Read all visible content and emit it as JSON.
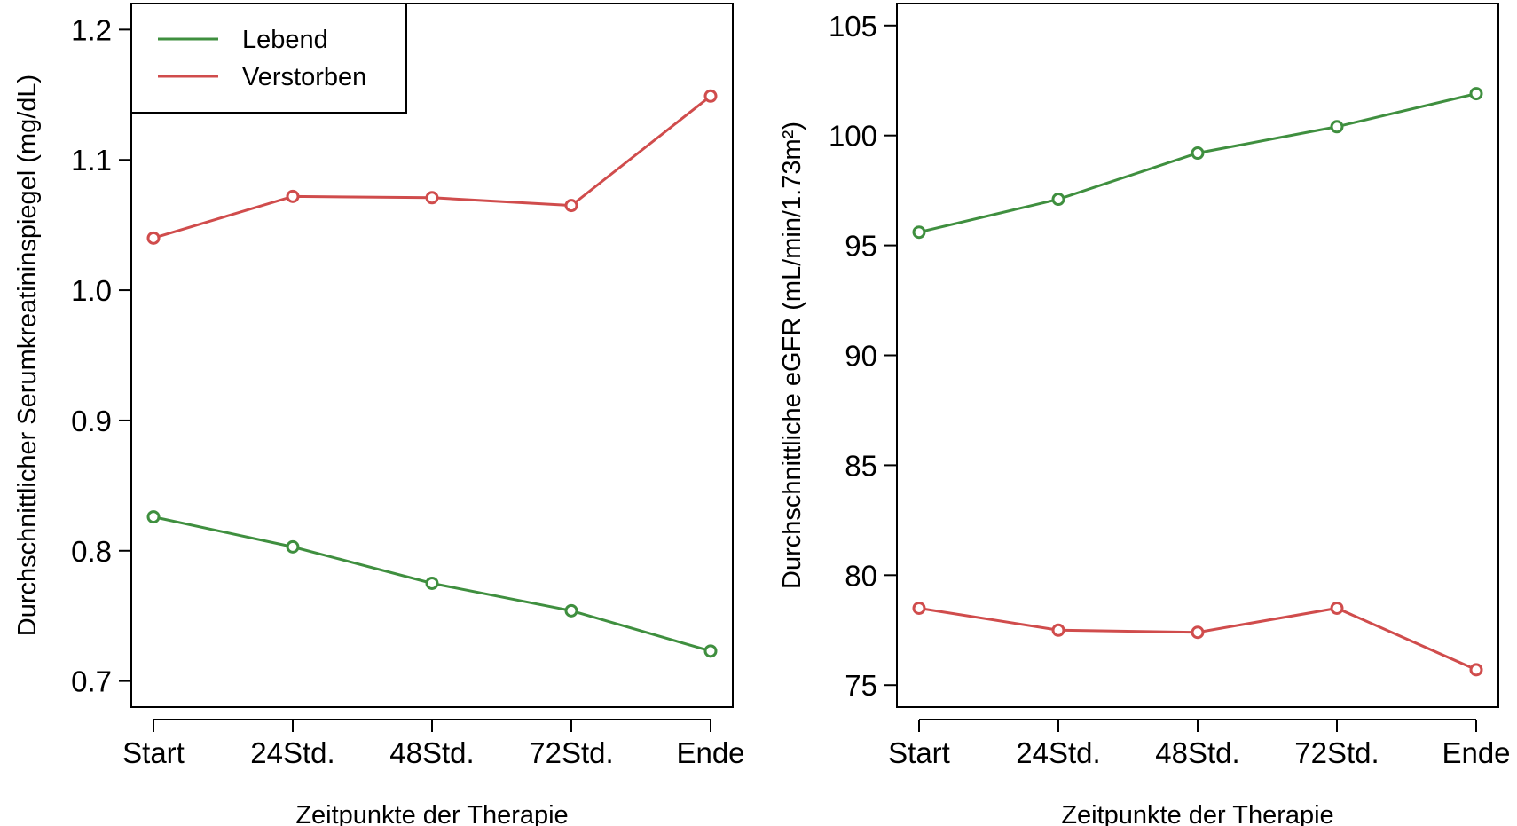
{
  "colors": {
    "lebend": "#3f8f3f",
    "verstorben": "#d04c4c"
  },
  "chart_data": [
    {
      "type": "line",
      "x": [
        "Start",
        "24Std.",
        "48Std.",
        "72Std.",
        "Ende"
      ],
      "xlabel": "Zeitpunkte der Therapie",
      "ylabel": "Durchschnittlicher Serumkreatininspiegel (mg/dL)",
      "ylim": [
        0.68,
        1.22
      ],
      "yticks": [
        "0.7",
        "0.8",
        "0.9",
        "1.0",
        "1.1",
        "1.2"
      ],
      "legend": {
        "position": "top-left"
      },
      "series": [
        {
          "name": "Lebend",
          "color": "#3f8f3f",
          "values": [
            0.826,
            0.803,
            0.775,
            0.754,
            0.723
          ]
        },
        {
          "name": "Verstorben",
          "color": "#d04c4c",
          "values": [
            1.04,
            1.072,
            1.071,
            1.065,
            1.149
          ]
        }
      ]
    },
    {
      "type": "line",
      "x": [
        "Start",
        "24Std.",
        "48Std.",
        "72Std.",
        "Ende"
      ],
      "xlabel": "Zeitpunkte der Therapie",
      "ylabel": "Durchschnittliche eGFR (mL/min/1.73m²)",
      "ylim": [
        74,
        106
      ],
      "yticks": [
        "75",
        "80",
        "85",
        "90",
        "95",
        "100",
        "105"
      ],
      "series": [
        {
          "name": "Lebend",
          "color": "#3f8f3f",
          "values": [
            95.6,
            97.1,
            99.2,
            100.4,
            101.9
          ]
        },
        {
          "name": "Verstorben",
          "color": "#d04c4c",
          "values": [
            78.5,
            77.5,
            77.4,
            78.5,
            75.7
          ]
        }
      ]
    }
  ]
}
